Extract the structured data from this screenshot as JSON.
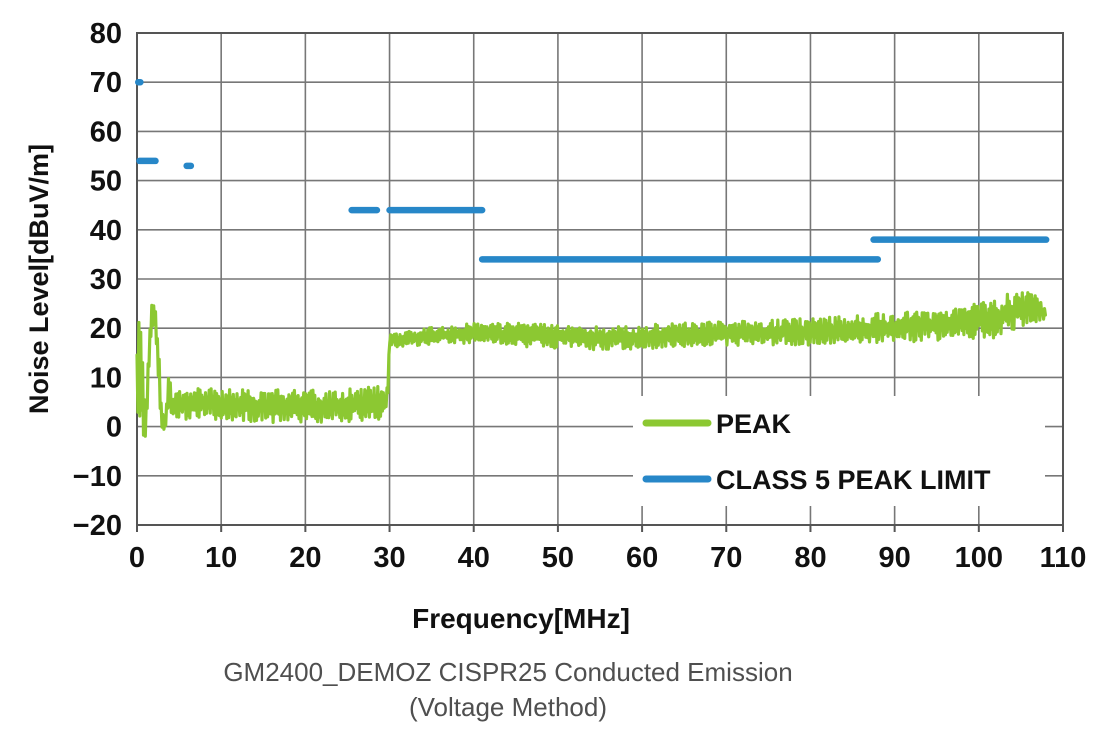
{
  "figure": {
    "xlabel": "Frequency[MHz]",
    "ylabel": "Noise Level[dBuV/m]",
    "caption_line1": "GM2400_DEMOZ CISPR25 Conducted Emission",
    "caption_line2": "(Voltage Method)"
  },
  "legend": {
    "peak_label": "PEAK",
    "limit_label": "CLASS 5 PEAK LIMIT"
  },
  "colors": {
    "peak": "#8CC832",
    "limit": "#2787C8",
    "grid": "#777777",
    "border": "#555555",
    "axis_text": "#111111",
    "caption_text": "#4F4F4F",
    "background": "#FFFFFF"
  },
  "chart_data": {
    "type": "line",
    "title": "GM2400_DEMOZ CISPR25 Conducted Emission (Voltage Method)",
    "xlabel": "Frequency[MHz]",
    "ylabel": "Noise Level[dBuV/m]",
    "xlim": [
      0,
      110
    ],
    "ylim": [
      -20,
      80
    ],
    "xticks": [
      0,
      10,
      20,
      30,
      40,
      50,
      60,
      70,
      80,
      90,
      100,
      110
    ],
    "yticks": [
      -20,
      -10,
      0,
      10,
      20,
      30,
      40,
      50,
      60,
      70,
      80
    ],
    "grid": true,
    "legend_position": "inside-bottom-right",
    "series": [
      {
        "name": "PEAK",
        "type": "noisy-line",
        "color": "#8CC832",
        "x_range": [
          0,
          108
        ],
        "x_step": 0.11,
        "envelope": [
          {
            "x": 0.0,
            "lo": 3,
            "hi": 21
          },
          {
            "x": 0.35,
            "lo": -1,
            "hi": 22
          },
          {
            "x": 0.7,
            "lo": -2,
            "hi": 14
          },
          {
            "x": 1.0,
            "lo": -2,
            "hi": 1
          },
          {
            "x": 1.3,
            "lo": 2,
            "hi": 14
          },
          {
            "x": 1.6,
            "lo": 18,
            "hi": 25
          },
          {
            "x": 2.1,
            "lo": 21,
            "hi": 26
          },
          {
            "x": 2.5,
            "lo": 6,
            "hi": 22
          },
          {
            "x": 2.9,
            "lo": -1,
            "hi": 4
          },
          {
            "x": 3.3,
            "lo": -2,
            "hi": 1
          },
          {
            "x": 3.7,
            "lo": 2,
            "hi": 11
          },
          {
            "x": 4.2,
            "lo": 1,
            "hi": 7
          },
          {
            "x": 8.0,
            "lo": 1.5,
            "hi": 8
          },
          {
            "x": 14.0,
            "lo": 1,
            "hi": 7.5
          },
          {
            "x": 20.0,
            "lo": 0.5,
            "hi": 7.5
          },
          {
            "x": 26.0,
            "lo": 1,
            "hi": 8
          },
          {
            "x": 29.7,
            "lo": 1.5,
            "hi": 8.5
          },
          {
            "x": 30.0,
            "lo": 16,
            "hi": 19
          },
          {
            "x": 34.0,
            "lo": 16.5,
            "hi": 20
          },
          {
            "x": 40.0,
            "lo": 17,
            "hi": 21
          },
          {
            "x": 48.0,
            "lo": 16,
            "hi": 21
          },
          {
            "x": 56.0,
            "lo": 15.5,
            "hi": 20.5
          },
          {
            "x": 64.0,
            "lo": 16,
            "hi": 21
          },
          {
            "x": 72.0,
            "lo": 16.5,
            "hi": 21.5
          },
          {
            "x": 80.0,
            "lo": 16.5,
            "hi": 22
          },
          {
            "x": 88.0,
            "lo": 17,
            "hi": 23
          },
          {
            "x": 96.0,
            "lo": 17.5,
            "hi": 24
          },
          {
            "x": 102.0,
            "lo": 18,
            "hi": 26
          },
          {
            "x": 105.0,
            "lo": 20,
            "hi": 28
          },
          {
            "x": 106.5,
            "lo": 21,
            "hi": 27
          },
          {
            "x": 108.0,
            "lo": 22,
            "hi": 24
          }
        ]
      },
      {
        "name": "CLASS 5 PEAK LIMIT",
        "type": "segments",
        "color": "#2787C8",
        "segments": [
          {
            "x1": 0.15,
            "x2": 0.4,
            "y": 70
          },
          {
            "x1": 0.3,
            "x2": 2.2,
            "y": 54
          },
          {
            "x1": 5.9,
            "x2": 6.4,
            "y": 53
          },
          {
            "x1": 25.5,
            "x2": 28.5,
            "y": 44
          },
          {
            "x1": 30.0,
            "x2": 41.0,
            "y": 44
          },
          {
            "x1": 41.0,
            "x2": 88.0,
            "y": 34
          },
          {
            "x1": 87.5,
            "x2": 108.0,
            "y": 38
          }
        ]
      }
    ]
  }
}
